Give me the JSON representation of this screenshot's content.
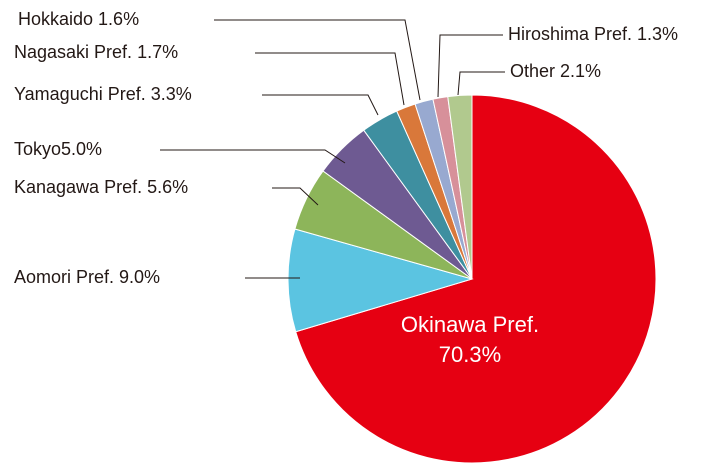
{
  "chart_data": {
    "type": "pie",
    "categories": [
      "Okinawa Pref.",
      "Aomori Pref.",
      "Kanagawa Pref.",
      "Tokyo",
      "Yamaguchi Pref.",
      "Nagasaki Pref.",
      "Hokkaido",
      "Hiroshima Pref.",
      "Other"
    ],
    "values": [
      70.3,
      9.0,
      5.6,
      5.0,
      3.3,
      1.7,
      1.6,
      1.3,
      2.1
    ],
    "value_labels": [
      "70.3%",
      "9.0%",
      "5.6%",
      "5.0%",
      "3.3%",
      "1.7%",
      "1.6%",
      "1.3%",
      "2.1%"
    ],
    "colors": [
      "#e60012",
      "#5bc4e1",
      "#8db55a",
      "#6e5a92",
      "#3e8fa0",
      "#d9783a",
      "#98a9d0",
      "#d7909a",
      "#b1c98e"
    ]
  }
}
